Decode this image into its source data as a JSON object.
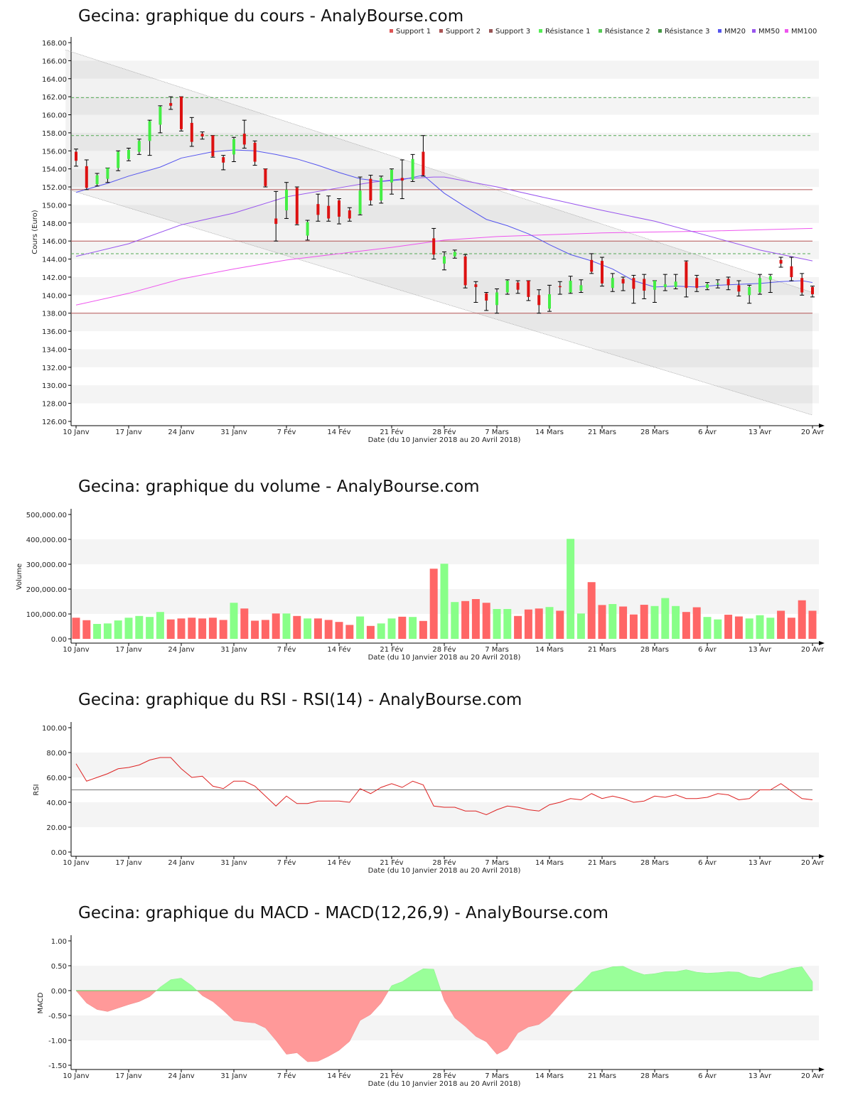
{
  "xlabel": "Date (du 10 Janvier 2018 au 20 Avril 2018)",
  "date_ticks": [
    {
      "label": "10 Janv",
      "i": 0
    },
    {
      "label": "17 Janv",
      "i": 5
    },
    {
      "label": "24 Janv",
      "i": 10
    },
    {
      "label": "31 Janv",
      "i": 15
    },
    {
      "label": "7 Fév",
      "i": 20
    },
    {
      "label": "14 Fév",
      "i": 25
    },
    {
      "label": "21 Fév",
      "i": 30
    },
    {
      "label": "28 Fév",
      "i": 35
    },
    {
      "label": "7 Mars",
      "i": 40
    },
    {
      "label": "14 Mars",
      "i": 45
    },
    {
      "label": "21 Mars",
      "i": 50
    },
    {
      "label": "28 Mars",
      "i": 55
    },
    {
      "label": "6 Avr",
      "i": 60
    },
    {
      "label": "13 Avr",
      "i": 65
    },
    {
      "label": "20 Avr",
      "i": 70
    }
  ],
  "colors": {
    "up": "#44ee44",
    "down": "#dd1111",
    "vol_up": "#88ff88",
    "vol_down": "#ff6666"
  },
  "chart_data": [
    {
      "type": "candlestick",
      "title": "Gecina: graphique du cours - AnalyBourse.com",
      "ylabel": "Cours (Euro)",
      "ylim": [
        126,
        168
      ],
      "ytick_step": 2,
      "legend": [
        {
          "name": "Support 1",
          "color": "#dd5555"
        },
        {
          "name": "Support 2",
          "color": "#aa5555"
        },
        {
          "name": "Support 3",
          "color": "#995555"
        },
        {
          "name": "Résistance 1",
          "color": "#55ee55"
        },
        {
          "name": "Résistance 2",
          "color": "#55cc55"
        },
        {
          "name": "Résistance 3",
          "color": "#449944"
        },
        {
          "name": "MM20",
          "color": "#5555ee"
        },
        {
          "name": "MM50",
          "color": "#9955ee"
        },
        {
          "name": "MM100",
          "color": "#ee55ee"
        }
      ],
      "support_lines": [
        151.7,
        146.0,
        138.0
      ],
      "resistance_lines": [
        161.9,
        157.7,
        144.6
      ],
      "trend_channel": {
        "upper": [
          167.2,
          140.3
        ],
        "lower": [
          151.8,
          126.7
        ]
      },
      "candles": [
        [
          155.9,
          154.9,
          156.2,
          154.3
        ],
        [
          154.3,
          151.9,
          155.0,
          151.7
        ],
        [
          152.3,
          153.3,
          153.5,
          152.1
        ],
        [
          152.9,
          154.1,
          154.1,
          152.5
        ],
        [
          154.1,
          155.9,
          156.0,
          153.8
        ],
        [
          155.1,
          156.1,
          156.3,
          154.9
        ],
        [
          155.9,
          157.1,
          157.3,
          155.6
        ],
        [
          157.1,
          159.3,
          159.4,
          155.5
        ],
        [
          158.9,
          160.9,
          161.0,
          158.0
        ],
        [
          161.3,
          161.0,
          162.0,
          160.6
        ],
        [
          162.0,
          158.4,
          162.0,
          158.2
        ],
        [
          159.1,
          157.0,
          159.7,
          156.5
        ],
        [
          157.9,
          157.6,
          158.1,
          157.3
        ],
        [
          157.7,
          155.4,
          157.7,
          155.3
        ],
        [
          155.3,
          154.7,
          155.5,
          153.9
        ],
        [
          155.6,
          157.3,
          157.5,
          154.8
        ],
        [
          157.9,
          156.7,
          159.4,
          156.3
        ],
        [
          156.9,
          154.8,
          157.1,
          154.4
        ],
        [
          154.0,
          152.1,
          154.0,
          152.0
        ],
        [
          148.5,
          147.9,
          151.5,
          146.0
        ],
        [
          149.4,
          151.7,
          152.5,
          148.5
        ],
        [
          151.9,
          147.9,
          152.0,
          147.8
        ],
        [
          146.6,
          148.1,
          148.3,
          146.1
        ],
        [
          150.1,
          148.9,
          151.2,
          148.2
        ],
        [
          149.9,
          148.5,
          151.0,
          148.2
        ],
        [
          150.5,
          148.7,
          150.7,
          147.9
        ],
        [
          149.4,
          148.5,
          149.7,
          148.2
        ],
        [
          149.0,
          151.6,
          153.1,
          148.9
        ],
        [
          152.9,
          150.5,
          153.3,
          150.0
        ],
        [
          150.5,
          153.0,
          153.2,
          150.2
        ],
        [
          152.5,
          153.9,
          154.0,
          151.2
        ],
        [
          153.0,
          152.7,
          155.0,
          150.7
        ],
        [
          152.8,
          155.1,
          155.6,
          152.6
        ],
        [
          155.9,
          153.3,
          157.7,
          153.2
        ],
        [
          146.3,
          144.5,
          147.4,
          144.0
        ],
        [
          143.5,
          144.3,
          144.8,
          142.8
        ],
        [
          144.3,
          144.8,
          145.0,
          144.1
        ],
        [
          144.3,
          141.1,
          144.5,
          140.8
        ],
        [
          141.2,
          140.9,
          141.5,
          139.2
        ],
        [
          140.2,
          139.4,
          140.3,
          138.3
        ],
        [
          138.9,
          140.3,
          140.7,
          138.0
        ],
        [
          140.3,
          141.6,
          141.7,
          140.1
        ],
        [
          141.4,
          140.6,
          141.6,
          140.2
        ],
        [
          141.6,
          139.8,
          141.6,
          139.4
        ],
        [
          140.0,
          138.9,
          140.6,
          138.0
        ],
        [
          138.5,
          140.1,
          141.1,
          138.2
        ],
        [
          141.0,
          140.9,
          141.5,
          140.1
        ],
        [
          140.3,
          141.6,
          142.1,
          140.2
        ],
        [
          140.5,
          141.1,
          141.7,
          140.3
        ],
        [
          143.9,
          142.6,
          144.6,
          142.4
        ],
        [
          143.8,
          141.3,
          144.2,
          141.0
        ],
        [
          140.8,
          141.9,
          142.4,
          140.4
        ],
        [
          141.8,
          141.3,
          142.0,
          140.5
        ],
        [
          141.9,
          140.7,
          142.2,
          139.1
        ],
        [
          141.8,
          140.5,
          142.3,
          139.6
        ],
        [
          140.6,
          141.6,
          141.6,
          139.2
        ],
        [
          140.9,
          141.2,
          142.3,
          140.5
        ],
        [
          140.9,
          141.5,
          142.3,
          140.7
        ],
        [
          143.7,
          140.8,
          143.8,
          139.8
        ],
        [
          141.9,
          140.8,
          142.2,
          140.4
        ],
        [
          140.8,
          141.2,
          141.4,
          140.6
        ],
        [
          141.2,
          141.3,
          141.7,
          140.8
        ],
        [
          141.8,
          141.1,
          142.0,
          140.6
        ],
        [
          141.1,
          140.4,
          141.6,
          139.9
        ],
        [
          140.0,
          140.9,
          141.1,
          139.1
        ],
        [
          140.3,
          141.9,
          142.3,
          140.1
        ],
        [
          141.7,
          142.1,
          142.3,
          140.3
        ],
        [
          143.9,
          143.5,
          144.2,
          143.1
        ],
        [
          143.2,
          142.0,
          144.2,
          141.6
        ],
        [
          141.9,
          140.3,
          142.4,
          140.0
        ],
        [
          140.9,
          140.1,
          141.0,
          139.8
        ]
      ],
      "mm20": [
        [
          0,
          151.4
        ],
        [
          3,
          152.4
        ],
        [
          5,
          153.2
        ],
        [
          8,
          154.2
        ],
        [
          10,
          155.2
        ],
        [
          13,
          155.9
        ],
        [
          15,
          156.1
        ],
        [
          17,
          156.0
        ],
        [
          19,
          155.6
        ],
        [
          21,
          155.1
        ],
        [
          23,
          154.4
        ],
        [
          25,
          153.6
        ],
        [
          27,
          152.9
        ],
        [
          29,
          152.6
        ],
        [
          31,
          152.8
        ],
        [
          33,
          153.3
        ],
        [
          35,
          151.3
        ],
        [
          37,
          149.8
        ],
        [
          39,
          148.4
        ],
        [
          41,
          147.7
        ],
        [
          43,
          146.8
        ],
        [
          45,
          145.6
        ],
        [
          47,
          144.5
        ],
        [
          49,
          143.8
        ],
        [
          51,
          142.9
        ],
        [
          53,
          141.6
        ],
        [
          55,
          140.9
        ],
        [
          57,
          141.0
        ],
        [
          59,
          140.9
        ],
        [
          61,
          141.1
        ],
        [
          63,
          141.2
        ],
        [
          65,
          141.3
        ],
        [
          67,
          141.5
        ],
        [
          69,
          141.6
        ],
        [
          70,
          141.4
        ]
      ],
      "mm50": [
        [
          0,
          144.3
        ],
        [
          5,
          145.7
        ],
        [
          10,
          147.8
        ],
        [
          15,
          149.1
        ],
        [
          20,
          150.9
        ],
        [
          25,
          151.9
        ],
        [
          28,
          152.5
        ],
        [
          31,
          152.9
        ],
        [
          34,
          153.1
        ],
        [
          35,
          153.1
        ],
        [
          40,
          152.0
        ],
        [
          45,
          150.7
        ],
        [
          50,
          149.4
        ],
        [
          55,
          148.2
        ],
        [
          60,
          146.6
        ],
        [
          65,
          145.0
        ],
        [
          70,
          143.8
        ]
      ],
      "mm100": [
        [
          0,
          138.9
        ],
        [
          5,
          140.2
        ],
        [
          10,
          141.8
        ],
        [
          15,
          142.9
        ],
        [
          20,
          143.9
        ],
        [
          25,
          144.6
        ],
        [
          30,
          145.3
        ],
        [
          35,
          146.1
        ],
        [
          40,
          146.5
        ],
        [
          50,
          146.9
        ],
        [
          60,
          147.1
        ],
        [
          70,
          147.4
        ]
      ]
    },
    {
      "type": "bar",
      "title": "Gecina: graphique du volume - AnalyBourse.com",
      "ylabel": "Volume",
      "ylim": [
        0,
        500000
      ],
      "ytick_labels": [
        "0.00",
        "100,000.00",
        "200,000.00",
        "300,000.00",
        "400,000.00",
        "500,000.00"
      ],
      "values": [
        85000,
        75000,
        60000,
        62000,
        74000,
        85000,
        92000,
        88000,
        108000,
        78000,
        82000,
        85000,
        82000,
        85000,
        76000,
        145000,
        122000,
        73000,
        76000,
        102000,
        102000,
        92000,
        82000,
        82000,
        76000,
        68000,
        56000,
        90000,
        52000,
        62000,
        82000,
        89000,
        88000,
        72000,
        282000,
        302000,
        148000,
        152000,
        160000,
        145000,
        120000,
        120000,
        92000,
        118000,
        122000,
        128000,
        113000,
        402000,
        102000,
        228000,
        136000,
        140000,
        130000,
        98000,
        137000,
        132000,
        164000,
        132000,
        108000,
        127000,
        88000,
        78000,
        97000,
        90000,
        82000,
        95000,
        85000,
        113000,
        85000,
        155000,
        113000
      ]
    },
    {
      "type": "line",
      "title": "Gecina: graphique du RSI - RSI(14) - AnalyBourse.com",
      "ylabel": "RSI",
      "ylim": [
        0,
        100
      ],
      "ytick_labels": [
        "0.00",
        "20.00",
        "40.00",
        "60.00",
        "80.00",
        "100.00"
      ],
      "reference_line": 50,
      "values": [
        71,
        57,
        60,
        63,
        67,
        68,
        70,
        74,
        76,
        76,
        67,
        60,
        61,
        53,
        51,
        57,
        57,
        53,
        45,
        37,
        45,
        39,
        39,
        41,
        41,
        41,
        40,
        51,
        47,
        52,
        55,
        52,
        57,
        54,
        37,
        36,
        36,
        33,
        33,
        30,
        34,
        37,
        36,
        34,
        33,
        38,
        40,
        43,
        42,
        47,
        43,
        45,
        43,
        40,
        41,
        45,
        44,
        46,
        43,
        43,
        44,
        47,
        46,
        42,
        43,
        50,
        50,
        55,
        49,
        43,
        42
      ]
    },
    {
      "type": "area",
      "title": "Gecina: graphique du MACD - MACD(12,26,9) - AnalyBourse.com",
      "ylabel": "MACD",
      "ylim": [
        -1.5,
        1.0
      ],
      "ytick_labels": [
        "-1.50",
        "-1.00",
        "-0.50",
        "0.00",
        "0.50",
        "1.00"
      ],
      "values": [
        0,
        -0.25,
        -0.38,
        -0.42,
        -0.35,
        -0.28,
        -0.22,
        -0.12,
        0.07,
        0.22,
        0.25,
        0.1,
        -0.1,
        -0.22,
        -0.4,
        -0.6,
        -0.63,
        -0.65,
        -0.75,
        -1.0,
        -1.28,
        -1.25,
        -1.43,
        -1.42,
        -1.32,
        -1.2,
        -1.02,
        -0.6,
        -0.48,
        -0.25,
        0.1,
        0.18,
        0.32,
        0.44,
        0.43,
        -0.2,
        -0.55,
        -0.72,
        -0.92,
        -1.03,
        -1.28,
        -1.17,
        -0.85,
        -0.73,
        -0.68,
        -0.52,
        -0.28,
        -0.05,
        0.15,
        0.37,
        0.42,
        0.48,
        0.49,
        0.39,
        0.32,
        0.34,
        0.38,
        0.38,
        0.42,
        0.37,
        0.35,
        0.36,
        0.38,
        0.37,
        0.28,
        0.25,
        0.33,
        0.38,
        0.45,
        0.48,
        0.18
      ]
    }
  ]
}
